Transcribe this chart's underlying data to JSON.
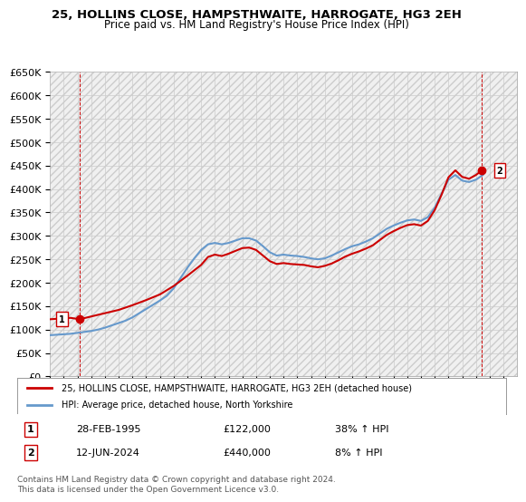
{
  "title": "25, HOLLINS CLOSE, HAMPSTHWAITE, HARROGATE, HG3 2EH",
  "subtitle": "Price paid vs. HM Land Registry's House Price Index (HPI)",
  "ylim": [
    0,
    650000
  ],
  "yticks": [
    0,
    50000,
    100000,
    150000,
    200000,
    250000,
    300000,
    350000,
    400000,
    450000,
    500000,
    550000,
    600000,
    650000
  ],
  "xlim_start": 1993,
  "xlim_end": 2027,
  "bg_color": "#ffffff",
  "grid_color": "#cccccc",
  "hatch_color": "#e8e8e8",
  "red_color": "#cc0000",
  "blue_color": "#6699cc",
  "transaction1": {
    "date_num": 1995.16,
    "price": 122000,
    "label": "1",
    "date_str": "28-FEB-1995",
    "hpi_pct": "38% ↑ HPI"
  },
  "transaction2": {
    "date_num": 2024.44,
    "price": 440000,
    "label": "2",
    "date_str": "12-JUN-2024",
    "hpi_pct": "8% ↑ HPI"
  },
  "legend_line1": "25, HOLLINS CLOSE, HAMPSTHWAITE, HARROGATE, HG3 2EH (detached house)",
  "legend_line2": "HPI: Average price, detached house, North Yorkshire",
  "footer": "Contains HM Land Registry data © Crown copyright and database right 2024.\nThis data is licensed under the Open Government Licence v3.0.",
  "hpi_data_x": [
    1993,
    1993.5,
    1994,
    1994.5,
    1995,
    1995.5,
    1996,
    1996.5,
    1997,
    1997.5,
    1998,
    1998.5,
    1999,
    1999.5,
    2000,
    2000.5,
    2001,
    2001.5,
    2002,
    2002.5,
    2003,
    2003.5,
    2004,
    2004.5,
    2005,
    2005.5,
    2006,
    2006.5,
    2007,
    2007.5,
    2008,
    2008.5,
    2009,
    2009.5,
    2010,
    2010.5,
    2011,
    2011.5,
    2012,
    2012.5,
    2013,
    2013.5,
    2014,
    2014.5,
    2015,
    2015.5,
    2016,
    2016.5,
    2017,
    2017.5,
    2018,
    2018.5,
    2019,
    2019.5,
    2020,
    2020.5,
    2021,
    2021.5,
    2022,
    2022.5,
    2023,
    2023.5,
    2024,
    2024.5
  ],
  "hpi_data_y": [
    88000,
    89000,
    90000,
    91000,
    93000,
    95000,
    97000,
    100000,
    104000,
    109000,
    114000,
    119000,
    126000,
    135000,
    144000,
    153000,
    162000,
    172000,
    188000,
    210000,
    232000,
    252000,
    270000,
    282000,
    285000,
    282000,
    285000,
    290000,
    295000,
    295000,
    290000,
    278000,
    265000,
    258000,
    260000,
    258000,
    257000,
    255000,
    252000,
    250000,
    252000,
    258000,
    265000,
    272000,
    278000,
    282000,
    288000,
    295000,
    305000,
    315000,
    322000,
    328000,
    333000,
    335000,
    332000,
    340000,
    360000,
    390000,
    420000,
    430000,
    418000,
    415000,
    420000,
    430000
  ],
  "red_data_x": [
    1993,
    1993.5,
    1994,
    1994.5,
    1995.16,
    1996,
    1997,
    1998,
    1999,
    2000,
    2001,
    2002,
    2003,
    2004,
    2004.5,
    2005,
    2005.5,
    2006,
    2006.5,
    2007,
    2007.5,
    2008,
    2008.5,
    2009,
    2009.5,
    2010,
    2010.5,
    2011,
    2011.5,
    2012,
    2012.5,
    2013,
    2013.5,
    2014,
    2014.5,
    2015,
    2015.5,
    2016,
    2016.5,
    2017,
    2017.5,
    2018,
    2018.5,
    2019,
    2019.5,
    2020,
    2020.5,
    2021,
    2021.5,
    2022,
    2022.5,
    2023,
    2023.5,
    2024,
    2024.44
  ],
  "red_data_y": [
    122000,
    123000,
    124000,
    125000,
    122000,
    128000,
    135000,
    142000,
    152000,
    163000,
    175000,
    193000,
    215000,
    238000,
    255000,
    260000,
    257000,
    262000,
    268000,
    274000,
    275000,
    270000,
    258000,
    246000,
    240000,
    242000,
    240000,
    239000,
    238000,
    235000,
    233000,
    236000,
    241000,
    248000,
    256000,
    262000,
    267000,
    273000,
    280000,
    291000,
    302000,
    310000,
    317000,
    323000,
    325000,
    322000,
    332000,
    355000,
    388000,
    425000,
    440000,
    426000,
    422000,
    430000,
    440000
  ]
}
